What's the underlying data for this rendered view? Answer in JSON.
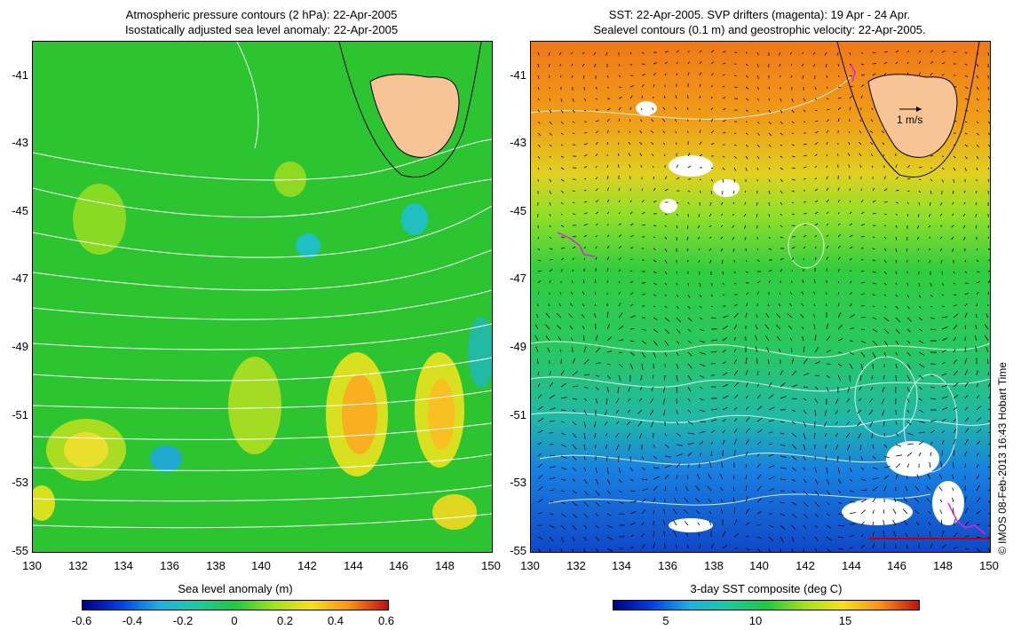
{
  "left_panel": {
    "title_line1": "Atmospheric pressure contours (2 hPa): 22-Apr-2005",
    "title_line2": "Isostatically adjusted sea level anomaly: 22-Apr-2005",
    "colorbar_label": "Sea level anomaly (m)",
    "colorbar_ticks": [
      "-0.6",
      "-0.4",
      "-0.2",
      "0",
      "0.2",
      "0.4",
      "0.6"
    ]
  },
  "right_panel": {
    "title_line1": "SST: 22-Apr-2005. SVP drifters (magenta): 19 Apr - 24 Apr.",
    "title_line2": "Sealevel contours (0.1 m) and geostrophic velocity: 22-Apr-2005.",
    "velocity_scale_label": "1 m/s",
    "colorbar_label": "3-day SST composite (deg C)",
    "colorbar_ticks": [
      "5",
      "10",
      "15"
    ]
  },
  "axes": {
    "lat_ticks": [
      "-41",
      "-43",
      "-45",
      "-47",
      "-49",
      "-51",
      "-53",
      "-55"
    ],
    "lon_ticks": [
      "130",
      "132",
      "134",
      "136",
      "138",
      "140",
      "142",
      "144",
      "146",
      "148",
      "150"
    ],
    "lat_range": [
      -55,
      -40
    ],
    "lon_range": [
      130,
      150
    ]
  },
  "credit": "© IMOS 08-Feb-2013 16:43 Hobart Time",
  "colors": {
    "land": "#f8c496",
    "ssh_base": "#22c82e",
    "sst_warm": "#f09018",
    "sst_mid": "#2ecc48",
    "sst_cold": "#1a70e0",
    "drifter": "#e020e0"
  }
}
